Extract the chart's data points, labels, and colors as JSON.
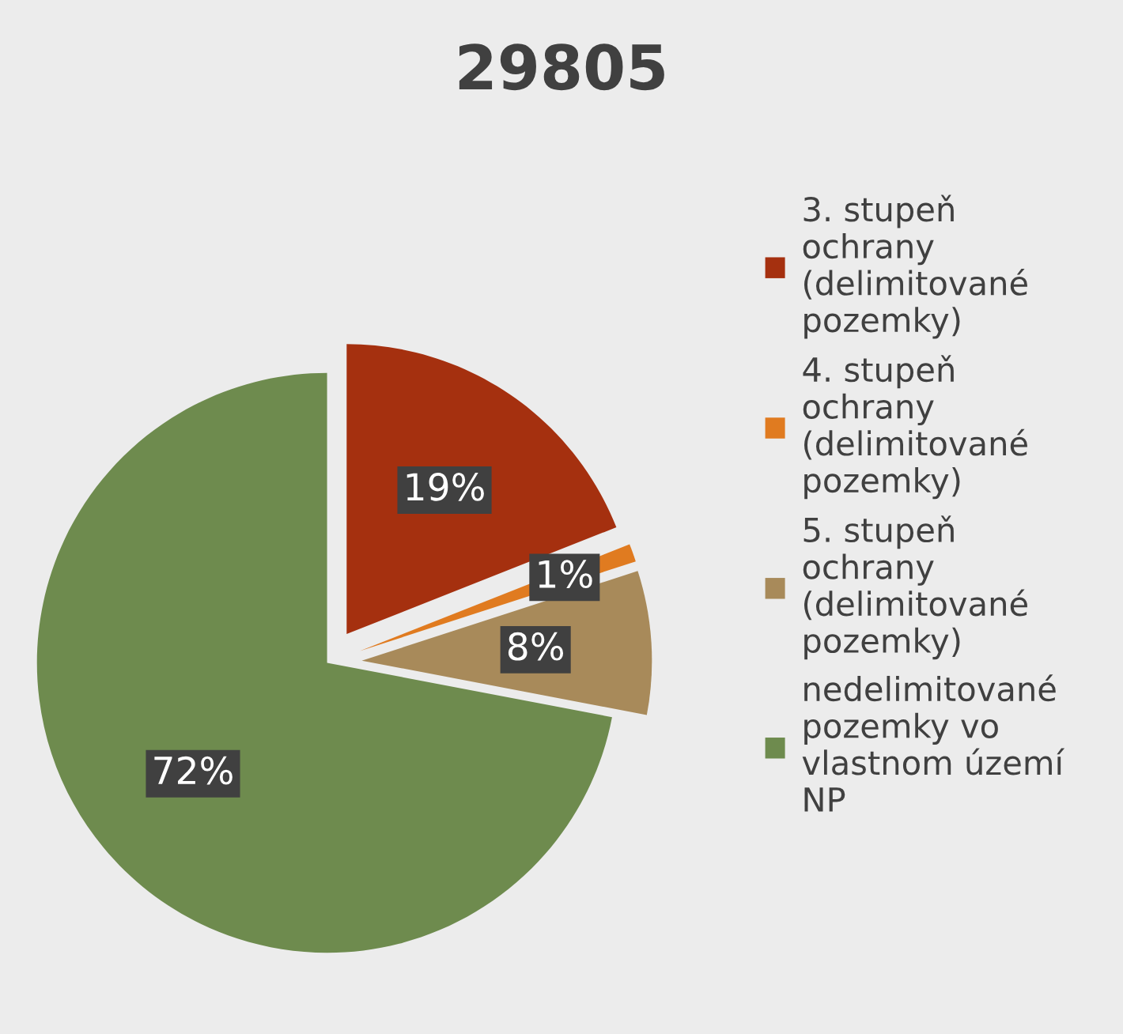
{
  "chart_data": {
    "type": "pie",
    "title": "29805",
    "categories": [
      "3. stupeň ochrany (delimitované pozemky)",
      "4. stupeň ochrany (delimitované pozemky)",
      "5. stupeň ochrany (delimitované pozemky)",
      "nedelimitované pozemky vo vlastnom území NP"
    ],
    "values": [
      19,
      1,
      8,
      72
    ],
    "colors": [
      "#a5300f",
      "#e07b20",
      "#a88a5a",
      "#6e8b4e"
    ],
    "value_labels": [
      "19%",
      "1%",
      "8%",
      "72%"
    ],
    "legend": "right"
  }
}
